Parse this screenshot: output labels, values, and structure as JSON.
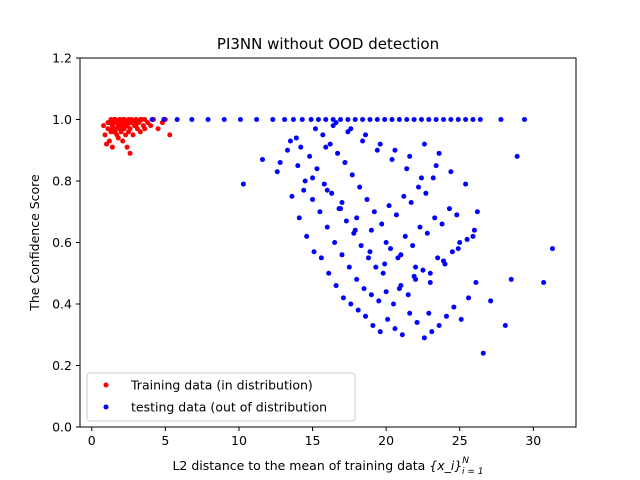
{
  "chart_data": {
    "type": "scatter",
    "title": "PI3NN without OOD detection",
    "xlabel_prefix": "L2 distance to the mean of training data ",
    "xlabel_math": "{x_i}",
    "xlabel_sup": "N",
    "xlabel_sub": "i = 1",
    "ylabel": "The Confidence Score",
    "xlim": [
      -0.8,
      32.9
    ],
    "ylim": [
      0.0,
      1.2
    ],
    "xticks": [
      0,
      5,
      10,
      15,
      20,
      25,
      30
    ],
    "yticks": [
      0.0,
      0.2,
      0.4,
      0.6,
      0.8,
      1.0,
      1.2
    ],
    "xtick_labels": [
      "0",
      "5",
      "10",
      "15",
      "20",
      "25",
      "30"
    ],
    "ytick_labels": [
      "0.0",
      "0.2",
      "0.4",
      "0.6",
      "0.8",
      "1.0",
      "1.2"
    ],
    "grid": false,
    "legend_position": "lower-left",
    "series": [
      {
        "name": "Training data (in distribution)",
        "color": "#ff0000",
        "x": [
          0.8,
          0.9,
          1.0,
          1.1,
          1.1,
          1.2,
          1.3,
          1.3,
          1.4,
          1.4,
          1.5,
          1.5,
          1.6,
          1.6,
          1.7,
          1.7,
          1.8,
          1.8,
          1.9,
          1.9,
          2.0,
          2.0,
          2.1,
          2.1,
          2.2,
          2.2,
          2.3,
          2.3,
          2.4,
          2.4,
          2.5,
          2.5,
          2.6,
          2.6,
          2.7,
          2.8,
          2.9,
          3.0,
          3.1,
          3.2,
          3.3,
          3.4,
          3.5,
          3.6,
          3.8,
          4.0,
          4.2,
          4.5,
          4.8,
          5.0,
          5.3,
          1.2,
          1.5,
          1.8,
          2.0,
          2.2,
          2.5,
          2.7,
          3.0,
          1.4,
          1.7,
          2.1,
          2.4,
          2.9,
          3.3,
          1.6,
          2.6,
          3.6,
          1.9,
          2.3
        ],
        "y": [
          0.98,
          0.95,
          0.92,
          0.97,
          0.99,
          0.93,
          0.96,
          1.0,
          0.98,
          0.91,
          0.99,
          0.96,
          0.97,
          1.0,
          0.95,
          0.99,
          0.98,
          0.94,
          1.0,
          0.97,
          0.99,
          0.96,
          0.98,
          0.93,
          1.0,
          0.97,
          0.99,
          0.95,
          0.98,
          0.91,
          0.96,
          1.0,
          0.89,
          0.97,
          0.99,
          0.95,
          0.98,
          1.0,
          0.97,
          0.99,
          0.96,
          1.0,
          0.98,
          0.97,
          0.99,
          0.98,
          1.0,
          0.97,
          0.99,
          1.0,
          0.95,
          0.99,
          1.0,
          0.99,
          0.98,
          1.0,
          0.99,
          1.0,
          0.98,
          0.97,
          0.99,
          1.0,
          0.98,
          0.99,
          1.0,
          0.96,
          0.99,
          1.0,
          0.98,
          0.99
        ]
      },
      {
        "name": "testing data (out of distribution",
        "color": "#0000ff",
        "x": [
          4.1,
          4.9,
          5.8,
          6.8,
          7.9,
          9.0,
          10.1,
          11.2,
          12.3,
          13.1,
          13.7,
          14.3,
          14.9,
          15.4,
          15.9,
          16.4,
          16.9,
          17.4,
          17.9,
          18.4,
          18.9,
          19.4,
          19.9,
          20.4,
          20.9,
          21.4,
          21.9,
          22.4,
          22.9,
          23.4,
          23.9,
          24.4,
          24.9,
          25.4,
          25.9,
          26.4,
          27.8,
          29.4,
          10.3,
          11.6,
          12.6,
          13.3,
          13.6,
          14.1,
          14.6,
          15.1,
          15.6,
          16.1,
          16.6,
          17.1,
          17.6,
          18.1,
          18.6,
          19.1,
          19.6,
          20.1,
          20.6,
          21.1,
          21.6,
          22.1,
          22.6,
          23.1,
          23.6,
          24.1,
          24.6,
          25.1,
          25.6,
          26.1,
          26.6,
          27.1,
          28.1,
          28.5,
          28.9,
          30.7,
          31.3,
          14.0,
          14.5,
          15.0,
          15.5,
          16.0,
          16.5,
          17.0,
          17.5,
          18.0,
          18.5,
          19.0,
          19.5,
          20.0,
          20.5,
          21.0,
          21.5,
          22.0,
          22.5,
          23.0,
          23.5,
          24.0,
          24.5,
          25.0,
          25.5,
          26.0,
          13.5,
          14.2,
          14.8,
          15.3,
          15.8,
          16.3,
          16.8,
          17.3,
          17.8,
          18.3,
          18.8,
          19.3,
          19.8,
          20.3,
          20.8,
          21.3,
          21.8,
          22.3,
          22.8,
          23.3,
          23.8,
          24.3,
          24.8,
          15.2,
          15.7,
          16.2,
          16.7,
          17.2,
          17.7,
          18.2,
          18.7,
          19.2,
          19.7,
          20.2,
          20.7,
          21.2,
          21.7,
          22.2,
          22.7,
          23.2,
          16.4,
          17.4,
          18.4,
          19.4,
          20.4,
          21.4,
          22.4,
          23.4,
          24.4,
          25.4,
          26.2,
          12.8,
          13.9,
          14.4,
          15.9,
          16.9,
          17.9,
          18.9,
          19.9,
          20.9,
          21.9,
          22.9,
          23.9,
          24.9,
          25.9,
          16.6,
          17.6,
          18.6,
          19.6,
          20.6,
          21.6,
          22.6,
          23.6,
          19.0,
          20.0,
          21.0,
          22.0,
          23.0,
          18.0,
          17.0,
          16.0,
          15.0
        ],
        "y": [
          1.0,
          1.0,
          1.0,
          1.0,
          1.0,
          1.0,
          1.0,
          1.0,
          1.0,
          1.0,
          1.0,
          1.0,
          1.0,
          1.0,
          1.0,
          1.0,
          1.0,
          1.0,
          1.0,
          1.0,
          1.0,
          1.0,
          1.0,
          1.0,
          1.0,
          1.0,
          1.0,
          1.0,
          1.0,
          1.0,
          1.0,
          1.0,
          1.0,
          1.0,
          1.0,
          1.0,
          1.0,
          1.0,
          0.79,
          0.87,
          0.83,
          0.9,
          0.75,
          0.68,
          0.62,
          0.57,
          0.55,
          0.5,
          0.46,
          0.42,
          0.4,
          0.38,
          0.36,
          0.33,
          0.31,
          0.35,
          0.32,
          0.3,
          0.37,
          0.34,
          0.29,
          0.31,
          0.33,
          0.36,
          0.39,
          0.35,
          0.42,
          0.47,
          0.24,
          0.41,
          0.33,
          0.48,
          0.88,
          0.47,
          0.58,
          0.85,
          0.8,
          0.74,
          0.7,
          0.65,
          0.6,
          0.56,
          0.52,
          0.48,
          0.45,
          0.43,
          0.41,
          0.44,
          0.4,
          0.46,
          0.43,
          0.48,
          0.51,
          0.5,
          0.55,
          0.53,
          0.57,
          0.6,
          0.61,
          0.64,
          0.93,
          0.91,
          0.88,
          0.84,
          0.79,
          0.76,
          0.71,
          0.67,
          0.63,
          0.59,
          0.55,
          0.52,
          0.5,
          0.58,
          0.55,
          0.62,
          0.59,
          0.65,
          0.63,
          0.68,
          0.66,
          0.71,
          0.69,
          0.97,
          0.95,
          0.92,
          0.89,
          0.86,
          0.82,
          0.78,
          0.74,
          0.7,
          0.66,
          0.72,
          0.69,
          0.75,
          0.73,
          0.78,
          0.76,
          0.81,
          0.98,
          0.96,
          0.93,
          0.9,
          0.87,
          0.84,
          0.81,
          0.85,
          0.83,
          0.79,
          0.7,
          0.86,
          0.94,
          0.77,
          0.91,
          0.71,
          0.64,
          0.57,
          0.53,
          0.45,
          0.49,
          0.37,
          0.54,
          0.58,
          0.62,
          0.99,
          0.97,
          0.95,
          0.92,
          0.9,
          0.88,
          0.92,
          0.89,
          0.64,
          0.6,
          0.56,
          0.52,
          0.47,
          0.68,
          0.73,
          0.77,
          0.81
        ]
      }
    ]
  }
}
